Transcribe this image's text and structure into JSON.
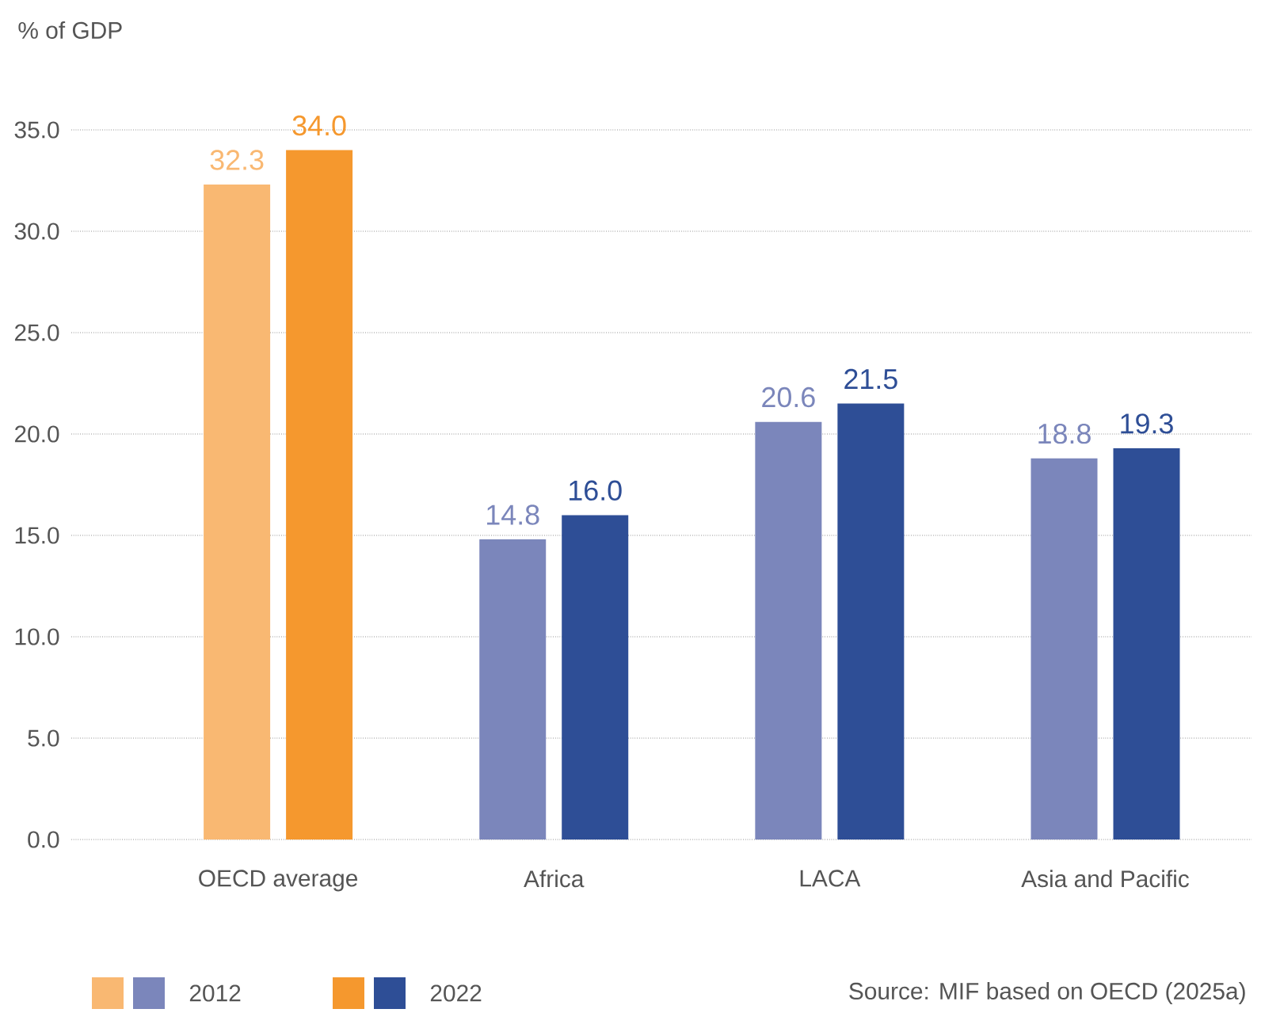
{
  "chart_data": {
    "type": "bar",
    "ylabel": "% of GDP",
    "categories": [
      "OECD average",
      "Africa",
      "LACA",
      "Asia and Pacific"
    ],
    "series": [
      {
        "name": "2012",
        "colors": [
          "#f9b872",
          "#7b86bb",
          "#7b86bb",
          "#7b86bb"
        ],
        "values": [
          32.3,
          14.8,
          20.6,
          18.8
        ],
        "value_labels": [
          "32.3",
          "14.8",
          "20.6",
          "18.8"
        ]
      },
      {
        "name": "2022",
        "colors": [
          "#f5982e",
          "#2e4e96",
          "#2e4e96",
          "#2e4e96"
        ],
        "values": [
          34.0,
          16.0,
          21.5,
          19.3
        ],
        "value_labels": [
          "34.0",
          "16.0",
          "21.5",
          "19.3"
        ]
      }
    ],
    "ylim": [
      0,
      35
    ],
    "yticks": [
      {
        "value": 0,
        "label": "0.0"
      },
      {
        "value": 5,
        "label": "5.0"
      },
      {
        "value": 10,
        "label": "10.0"
      },
      {
        "value": 15,
        "label": "15.0"
      },
      {
        "value": 20,
        "label": "20.0"
      },
      {
        "value": 25,
        "label": "25.0"
      },
      {
        "value": 30,
        "label": "30.0"
      },
      {
        "value": 35,
        "label": "35.0"
      }
    ],
    "grid": "y",
    "legend": "bottom",
    "annotations": [
      "Source: MIF based on OECD (2025a)"
    ]
  }
}
